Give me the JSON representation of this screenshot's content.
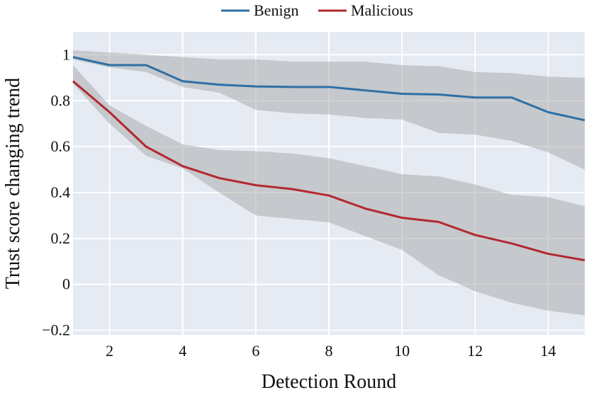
{
  "chart_data": {
    "type": "line",
    "title": "",
    "xlabel": "Detection Round",
    "ylabel": "Trust score changing trend",
    "xlim": [
      1,
      15
    ],
    "ylim": [
      -0.22,
      1.1
    ],
    "x": [
      1,
      2,
      3,
      4,
      5,
      6,
      7,
      8,
      9,
      10,
      11,
      12,
      13,
      14,
      15
    ],
    "x_ticks": [
      2,
      4,
      6,
      8,
      10,
      12,
      14
    ],
    "x_tick_labels": [
      "2",
      "4",
      "6",
      "8",
      "10",
      "12",
      "14"
    ],
    "y_ticks": [
      -0.2,
      0,
      0.2,
      0.4,
      0.6,
      0.8,
      1
    ],
    "y_tick_labels": [
      "−0.2",
      "0",
      "0.2",
      "0.4",
      "0.6",
      "0.8",
      "1"
    ],
    "grid": true,
    "legend_position": "top-center",
    "band_color": "#a6a6a6",
    "background_color": "#e5eaf3",
    "series": [
      {
        "name": "Benign",
        "color": "#2e6fa6",
        "values": [
          0.99,
          0.955,
          0.955,
          0.885,
          0.87,
          0.862,
          0.86,
          0.86,
          0.845,
          0.83,
          0.827,
          0.814,
          0.814,
          0.75,
          0.715
        ],
        "upper": [
          1.02,
          1.01,
          1.0,
          0.99,
          0.98,
          0.98,
          0.97,
          0.97,
          0.97,
          0.955,
          0.95,
          0.925,
          0.92,
          0.905,
          0.9
        ],
        "lower": [
          0.98,
          0.945,
          0.925,
          0.86,
          0.835,
          0.76,
          0.745,
          0.74,
          0.725,
          0.718,
          0.66,
          0.652,
          0.625,
          0.575,
          0.5
        ]
      },
      {
        "name": "Malicious",
        "color": "#b2282f",
        "values": [
          0.885,
          0.75,
          0.6,
          0.515,
          0.463,
          0.432,
          0.415,
          0.387,
          0.33,
          0.29,
          0.272,
          0.215,
          0.178,
          0.133,
          0.105
        ],
        "upper": [
          0.955,
          0.78,
          0.69,
          0.61,
          0.585,
          0.58,
          0.57,
          0.55,
          0.515,
          0.48,
          0.47,
          0.435,
          0.39,
          0.38,
          0.34
        ],
        "lower": [
          0.875,
          0.7,
          0.56,
          0.505,
          0.4,
          0.3,
          0.285,
          0.27,
          0.21,
          0.15,
          0.04,
          -0.03,
          -0.08,
          -0.115,
          -0.135
        ]
      }
    ]
  }
}
